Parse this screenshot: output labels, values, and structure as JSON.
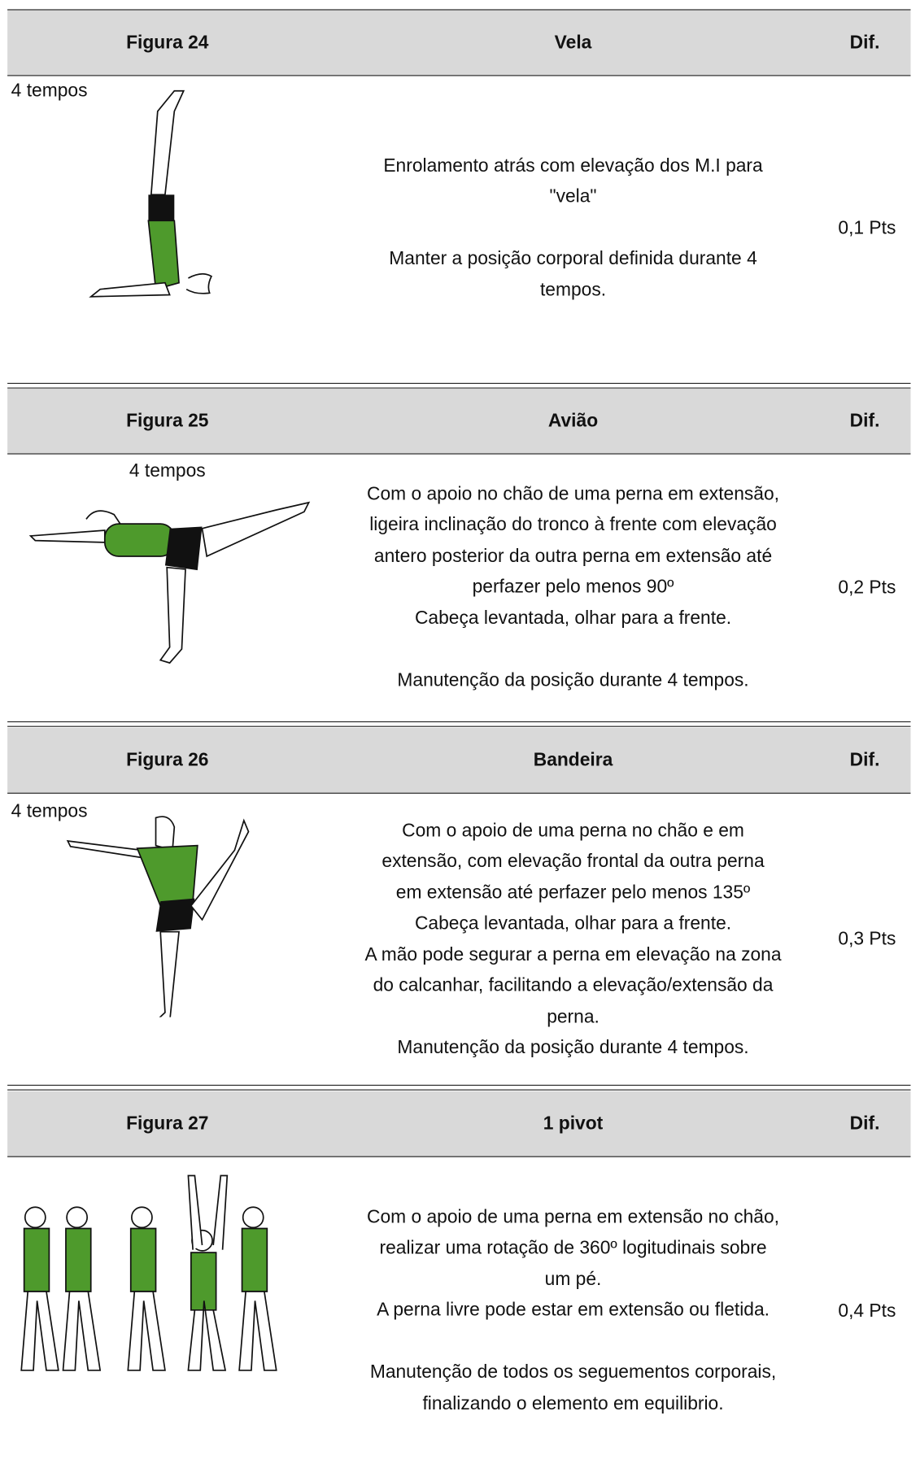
{
  "sections": [
    {
      "figure": "Figura 24",
      "name": "Vela",
      "dif": "Dif.",
      "tempos": "4 tempos",
      "description": [
        [
          "Enrolamento atrás com elevação dos M.I para",
          "\"vela\""
        ],
        [
          "Manter a posição corporal definida durante 4",
          "tempos."
        ]
      ],
      "points": "0,1 Pts"
    },
    {
      "figure": "Figura 25",
      "name": "Avião",
      "dif": "Dif.",
      "tempos": "4 tempos",
      "description": [
        [
          "Com o apoio no chão de uma perna  em extensão,",
          "ligeira inclinação do tronco à frente com elevação",
          "antero posterior da outra perna em extensão até",
          "perfazer pelo menos 90º",
          "Cabeça levantada, olhar para a frente."
        ],
        [
          "Manutenção da posição durante 4 tempos."
        ]
      ],
      "points": "0,2 Pts"
    },
    {
      "figure": "Figura 26",
      "name": "Bandeira",
      "dif": "Dif.",
      "tempos": "4 tempos",
      "description": [
        [
          "Com o apoio de uma perna no chão e em",
          "extensão, com elevação frontal da outra perna",
          "em extensão até perfazer pelo menos 135º",
          "Cabeça levantada, olhar para a frente.",
          "A mão pode segurar a perna em elevação na zona",
          "do calcanhar, facilitando a elevação/extensão da",
          "perna.",
          "Manutenção da posição durante 4 tempos."
        ]
      ],
      "points": "0,3 Pts"
    },
    {
      "figure": "Figura 27",
      "name": "1 pivot",
      "dif": "Dif.",
      "description": [
        [
          "Com o apoio de uma perna em extensão no chão,",
          "realizar uma rotação de 360º logitudinais sobre",
          "um pé.",
          "A perna livre pode estar em extensão ou fletida."
        ],
        [
          "Manutenção de todos os seguementos corporais,",
          "finalizando o elemento em equilibrio."
        ]
      ],
      "points": "0,4 Pts"
    }
  ]
}
